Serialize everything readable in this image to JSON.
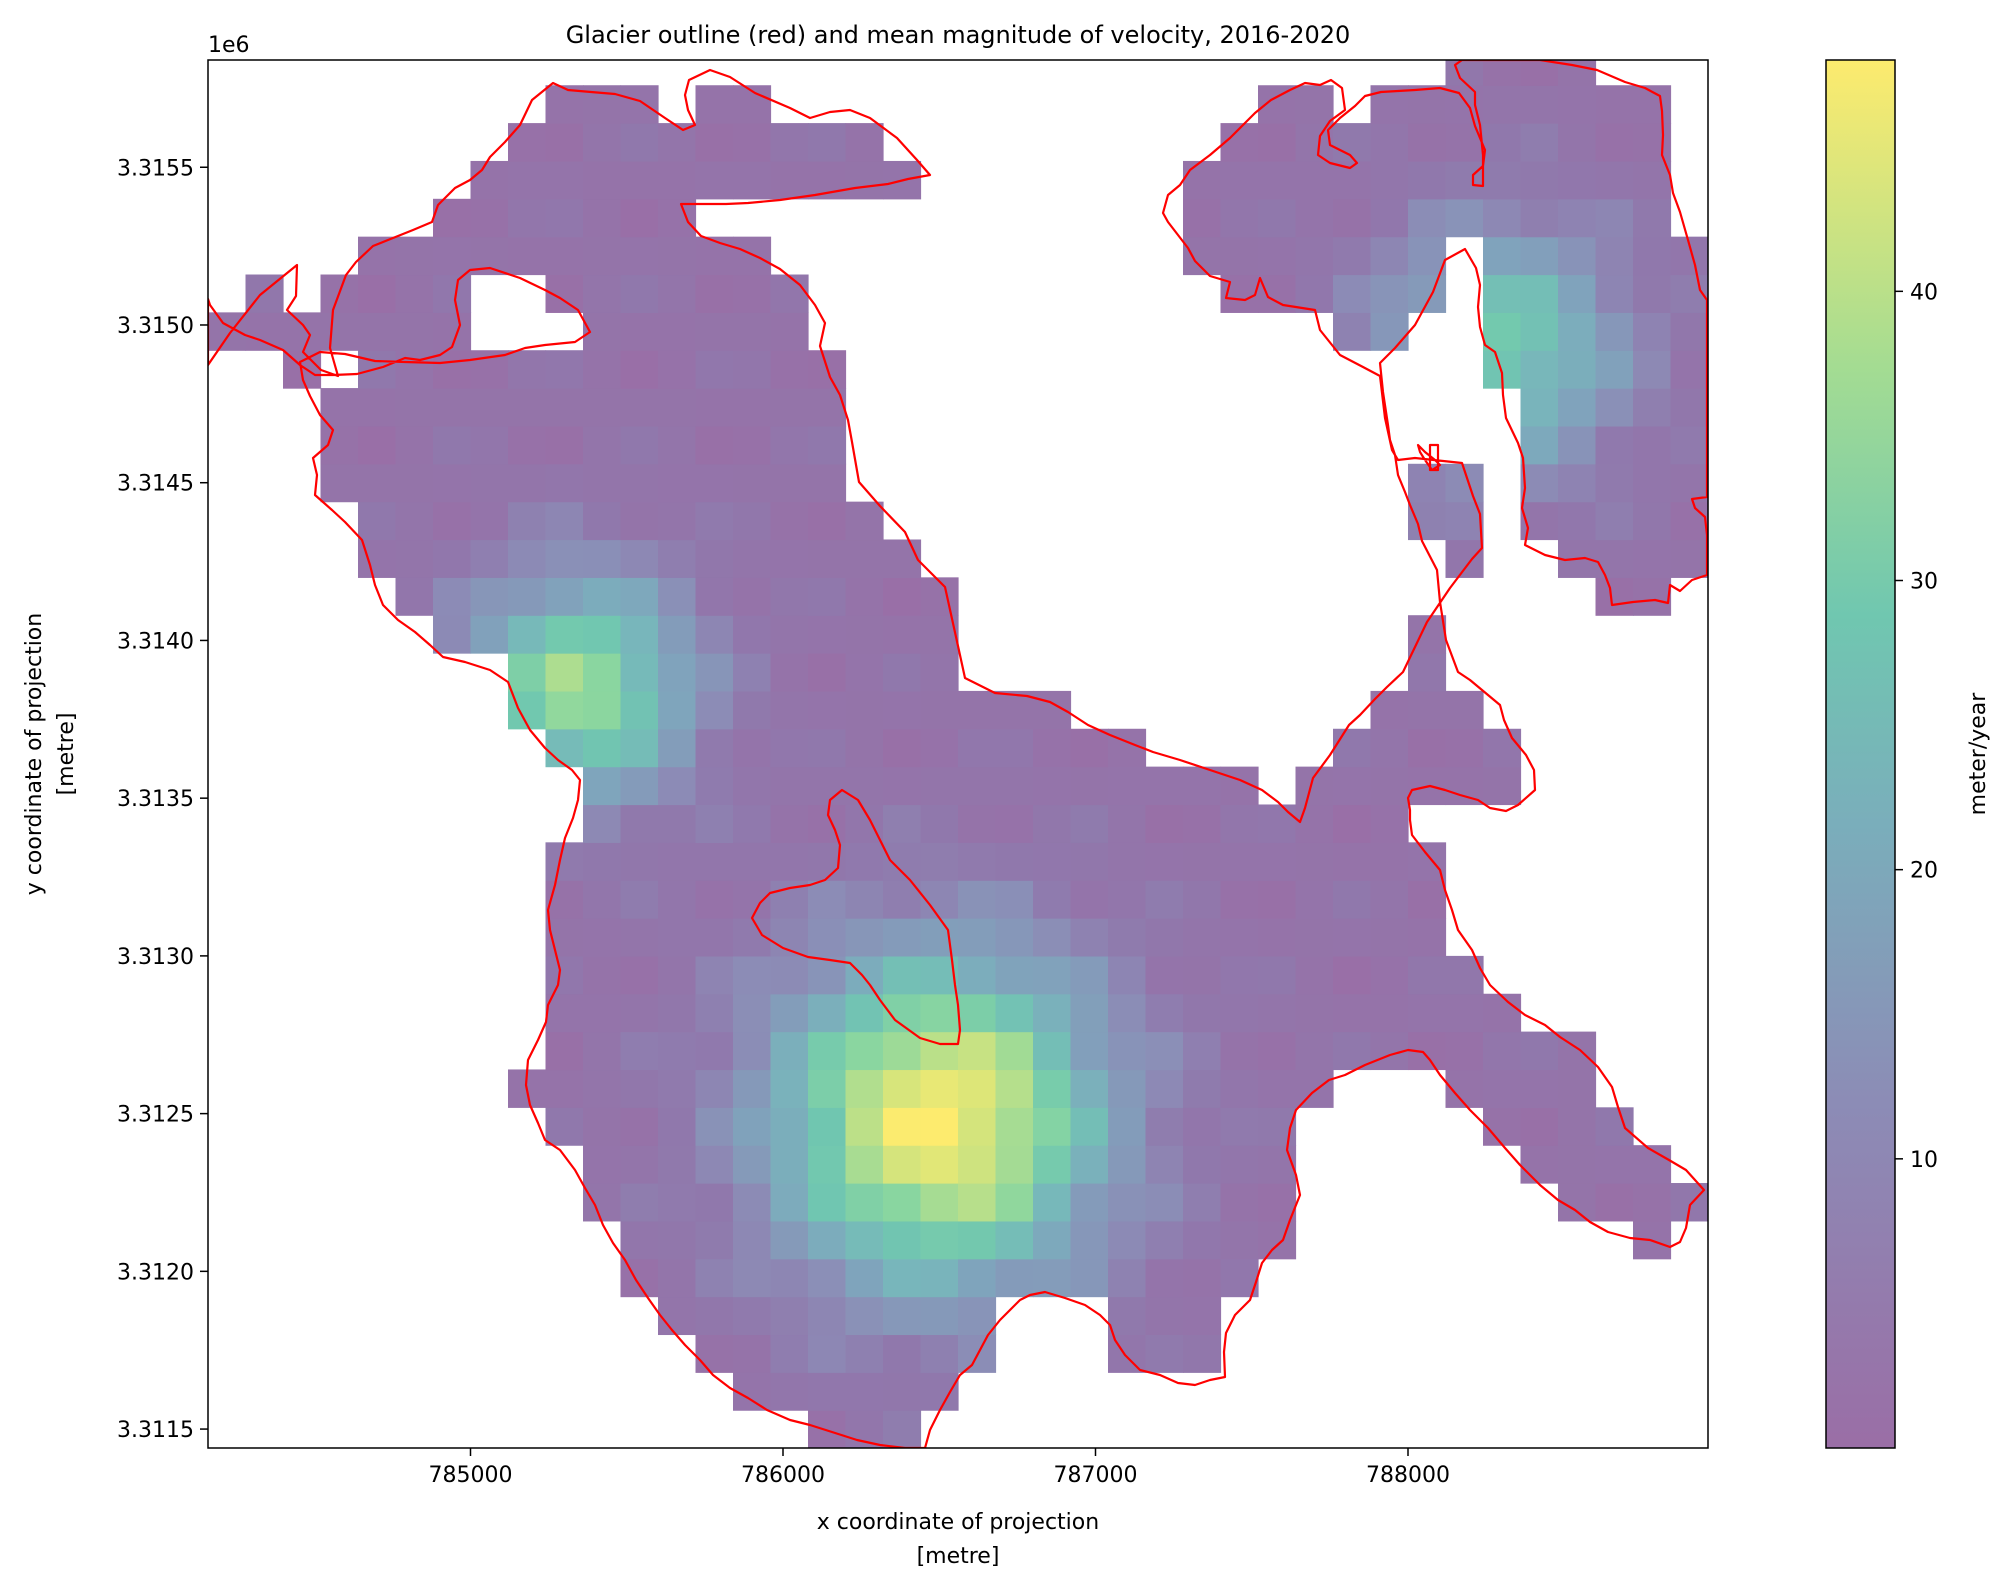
{
  "chart_data": {
    "type": "heatmap",
    "title": "Glacier outline (red) and mean magnitude of velocity, 2016-2020",
    "xlabel": "x coordinate of projection",
    "xlabel_unit": "[metre]",
    "ylabel": "y coordinate of projection",
    "ylabel_unit": "[metre]",
    "y_offset_label": "1e6",
    "xlim": [
      784160,
      788960
    ],
    "ylim": [
      3311440,
      3315840
    ],
    "x_ticks": [
      785000,
      786000,
      787000,
      788000
    ],
    "x_tick_labels": [
      "785000",
      "786000",
      "787000",
      "788000"
    ],
    "y_ticks": [
      3311500,
      3312000,
      3312500,
      3313000,
      3313500,
      3314000,
      3314500,
      3315000,
      3315500
    ],
    "y_tick_labels": [
      "3.3115",
      "3.3120",
      "3.3125",
      "3.3130",
      "3.3135",
      "3.3140",
      "3.3145",
      "3.3150",
      "3.3155"
    ],
    "colorbar": {
      "label": "meter/year",
      "vmin": 0,
      "vmax": 48,
      "ticks": [
        10,
        20,
        30,
        40
      ],
      "tick_labels": [
        "10",
        "20",
        "30",
        "40"
      ],
      "colormap": "viridis",
      "alpha": 0.6
    },
    "cell_size_m": 120,
    "velocity_hotspots_m_per_year": [
      {
        "x": 786500,
        "y": 3312480,
        "value": 47
      },
      {
        "x": 785350,
        "y": 3313850,
        "value": 36
      },
      {
        "x": 788300,
        "y": 3314920,
        "value": 30
      }
    ],
    "outline_color": "#ff0000",
    "grid": false,
    "legend": "none"
  }
}
